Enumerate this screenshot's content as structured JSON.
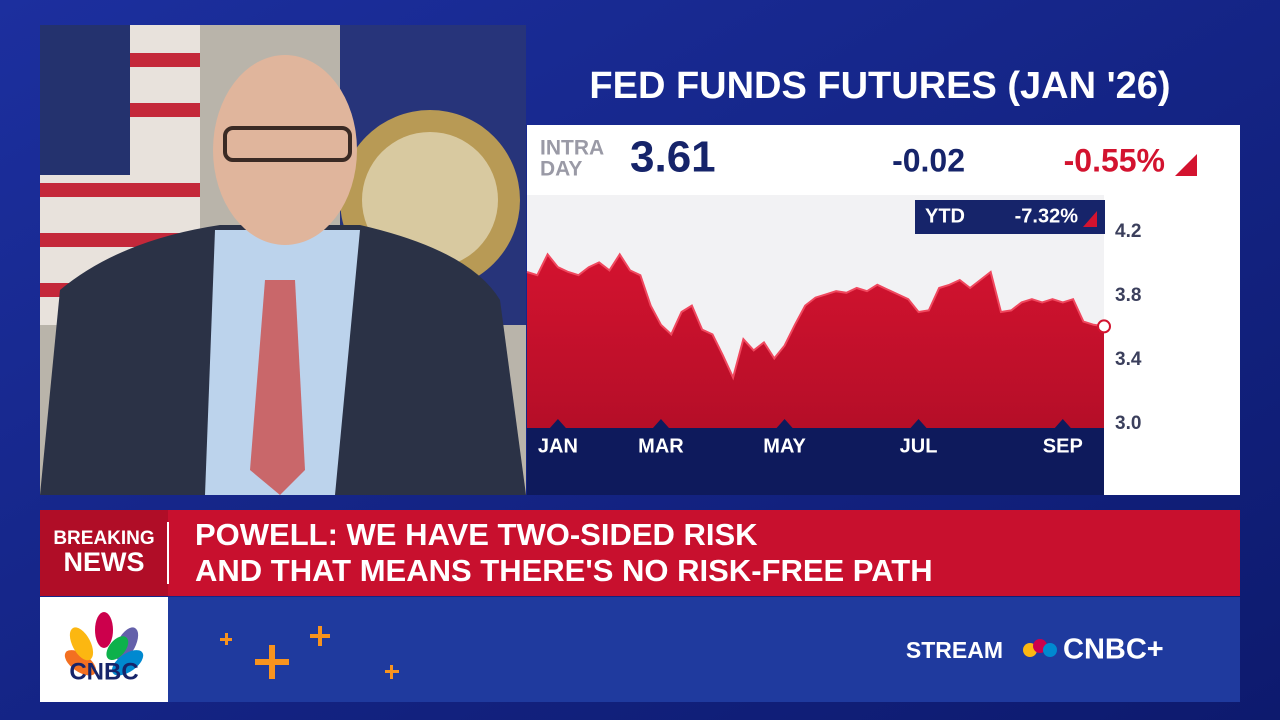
{
  "chart_data": {
    "type": "area",
    "title": "FED FUNDS FUTURES (JAN '26)",
    "categories": [
      null,
      null,
      null,
      "JAN",
      null,
      null,
      null,
      null,
      null,
      null,
      null,
      null,
      null,
      "MAR",
      null,
      null,
      null,
      null,
      null,
      null,
      null,
      null,
      null,
      null,
      null,
      "MAY",
      null,
      null,
      null,
      null,
      null,
      null,
      null,
      null,
      null,
      null,
      null,
      null,
      "JUL",
      null,
      null,
      null,
      null,
      null,
      null,
      null,
      null,
      null,
      null,
      null,
      null,
      null,
      "SEP",
      null,
      null,
      null,
      null
    ],
    "values": [
      3.95,
      3.93,
      4.06,
      3.98,
      3.95,
      3.93,
      3.98,
      4.01,
      3.96,
      4.06,
      3.96,
      3.93,
      3.74,
      3.62,
      3.56,
      3.7,
      3.74,
      3.59,
      3.56,
      3.43,
      3.29,
      3.53,
      3.46,
      3.51,
      3.41,
      3.49,
      3.62,
      3.74,
      3.79,
      3.81,
      3.83,
      3.82,
      3.85,
      3.83,
      3.87,
      3.84,
      3.81,
      3.78,
      3.7,
      3.71,
      3.85,
      3.87,
      3.9,
      3.85,
      3.9,
      3.95,
      3.7,
      3.71,
      3.76,
      3.78,
      3.76,
      3.78,
      3.76,
      3.78,
      3.64,
      3.62,
      3.61
    ],
    "color": "#d3132f",
    "ylim": [
      3.0,
      4.2
    ],
    "yticks": [
      {
        "value": 3.0,
        "label": "3.0"
      },
      3.4,
      3.8,
      4.2
    ]
  },
  "quote": {
    "label_1": "INTRA",
    "label_2": "DAY",
    "last": "3.61",
    "change": "-0.02",
    "change_pct": "-0.55%",
    "ytd_label": "YTD",
    "ytd_pct": "-7.32%"
  },
  "banner": {
    "tag_1": "BREAKING",
    "tag_2": "NEWS",
    "headline_1": "POWELL: WE HAVE TWO-SIDED RISK",
    "headline_2": "AND THAT MEANS THERE'S NO RISK-FREE PATH"
  },
  "footer": {
    "logo": "CNBC",
    "stream": "STREAM",
    "brand": "CNBC+"
  }
}
